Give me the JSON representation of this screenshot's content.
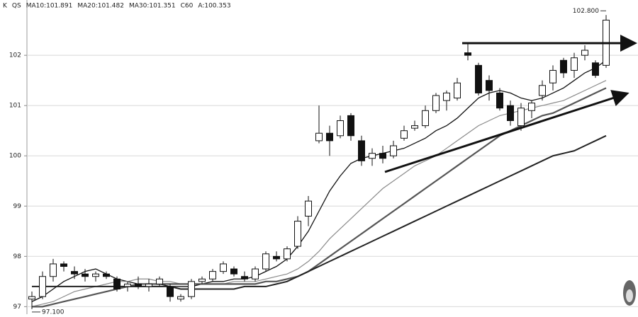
{
  "chart_data": {
    "type": "candlestick",
    "header": [
      "K",
      "QS",
      "MA10:101.891",
      "MA20:101.482",
      "MA30:101.351",
      "C60",
      "A:100.353"
    ],
    "annotations": [
      "102.800",
      "97.100"
    ],
    "ylim": [
      96.85,
      103.1
    ],
    "yticks": [
      97,
      98,
      99,
      100,
      101,
      102
    ],
    "grid": true,
    "up_color": "#ffffff",
    "down_color": "#111111",
    "candles": {
      "open": [
        97.15,
        97.2,
        97.6,
        97.85,
        97.7,
        97.65,
        97.6,
        97.65,
        97.55,
        97.4,
        97.45,
        97.4,
        97.45,
        97.4,
        97.15,
        97.2,
        97.5,
        97.55,
        97.7,
        97.75,
        97.6,
        97.55,
        97.75,
        98.0,
        97.95,
        98.2,
        98.8,
        100.3,
        100.45,
        100.4,
        100.8,
        100.3,
        99.95,
        100.05,
        100.0,
        100.35,
        100.55,
        100.6,
        100.9,
        101.1,
        101.15,
        102.05,
        101.8,
        101.5,
        101.25,
        101.0,
        100.6,
        100.9,
        101.2,
        101.45,
        101.9,
        101.7,
        102.0,
        101.85,
        101.8
      ],
      "high": [
        97.3,
        97.7,
        97.95,
        97.9,
        97.8,
        97.75,
        97.7,
        97.7,
        97.6,
        97.5,
        97.6,
        97.55,
        97.6,
        97.45,
        97.25,
        97.55,
        97.6,
        97.75,
        97.9,
        97.8,
        97.7,
        97.8,
        98.1,
        98.1,
        98.2,
        98.8,
        99.2,
        101.0,
        100.6,
        100.8,
        100.85,
        100.4,
        100.15,
        100.2,
        100.3,
        100.6,
        100.7,
        101.0,
        101.25,
        101.3,
        101.55,
        102.25,
        101.85,
        101.6,
        101.35,
        101.1,
        101.05,
        101.1,
        101.5,
        101.8,
        101.95,
        102.05,
        102.2,
        101.9,
        102.8
      ],
      "low": [
        96.95,
        97.15,
        97.5,
        97.7,
        97.55,
        97.5,
        97.5,
        97.55,
        97.3,
        97.3,
        97.35,
        97.3,
        97.4,
        97.1,
        97.1,
        97.15,
        97.45,
        97.5,
        97.65,
        97.6,
        97.5,
        97.5,
        97.7,
        97.9,
        97.9,
        98.15,
        98.6,
        100.25,
        100.0,
        100.35,
        100.3,
        99.8,
        99.8,
        99.85,
        99.95,
        100.3,
        100.5,
        100.55,
        100.85,
        100.9,
        101.1,
        101.9,
        101.2,
        101.1,
        100.9,
        100.6,
        100.5,
        100.75,
        101.1,
        101.3,
        101.55,
        101.55,
        101.9,
        101.55,
        101.75
      ],
      "close": [
        97.2,
        97.6,
        97.85,
        97.8,
        97.65,
        97.6,
        97.65,
        97.6,
        97.35,
        97.45,
        97.4,
        97.45,
        97.55,
        97.2,
        97.2,
        97.5,
        97.55,
        97.7,
        97.85,
        97.65,
        97.55,
        97.75,
        98.05,
        97.95,
        98.15,
        98.7,
        99.1,
        100.45,
        100.3,
        100.7,
        100.4,
        99.9,
        100.05,
        99.95,
        100.2,
        100.5,
        100.6,
        100.9,
        101.2,
        101.25,
        101.45,
        102.0,
        101.25,
        101.3,
        100.95,
        100.7,
        100.95,
        101.05,
        101.4,
        101.7,
        101.65,
        101.95,
        102.1,
        101.6,
        102.7
      ]
    },
    "series": [
      {
        "color": "#111111",
        "width": 1.3,
        "values": [
          97.1,
          97.2,
          97.35,
          97.5,
          97.6,
          97.7,
          97.75,
          97.65,
          97.55,
          97.5,
          97.45,
          97.45,
          97.45,
          97.4,
          97.4,
          97.4,
          97.45,
          97.5,
          97.5,
          97.55,
          97.55,
          97.6,
          97.7,
          97.8,
          97.95,
          98.2,
          98.5,
          98.9,
          99.3,
          99.6,
          99.85,
          99.95,
          100.0,
          100.05,
          100.1,
          100.15,
          100.25,
          100.35,
          100.5,
          100.6,
          100.75,
          100.95,
          101.15,
          101.25,
          101.3,
          101.25,
          101.15,
          101.1,
          101.15,
          101.25,
          101.35,
          101.5,
          101.65,
          101.75,
          101.9
        ]
      },
      {
        "color": "#8a8a8a",
        "width": 1.2,
        "values": [
          97.0,
          97.05,
          97.1,
          97.2,
          97.3,
          97.35,
          97.4,
          97.45,
          97.5,
          97.5,
          97.55,
          97.55,
          97.5,
          97.5,
          97.45,
          97.45,
          97.45,
          97.45,
          97.45,
          97.5,
          97.5,
          97.5,
          97.55,
          97.6,
          97.65,
          97.75,
          97.9,
          98.1,
          98.35,
          98.55,
          98.75,
          98.95,
          99.15,
          99.35,
          99.5,
          99.65,
          99.8,
          99.9,
          100.0,
          100.15,
          100.3,
          100.45,
          100.6,
          100.7,
          100.8,
          100.85,
          100.9,
          100.95,
          101.0,
          101.05,
          101.1,
          101.2,
          101.3,
          101.4,
          101.5
        ]
      },
      {
        "color": "#555555",
        "width": 2.2,
        "values": [
          97.0,
          97.0,
          97.05,
          97.1,
          97.15,
          97.2,
          97.25,
          97.3,
          97.35,
          97.4,
          97.45,
          97.45,
          97.45,
          97.45,
          97.45,
          97.45,
          97.45,
          97.45,
          97.45,
          97.45,
          97.45,
          97.45,
          97.5,
          97.5,
          97.55,
          97.6,
          97.7,
          97.85,
          98.0,
          98.15,
          98.3,
          98.45,
          98.6,
          98.75,
          98.9,
          99.05,
          99.2,
          99.35,
          99.5,
          99.65,
          99.8,
          99.95,
          100.1,
          100.25,
          100.4,
          100.5,
          100.6,
          100.7,
          100.8,
          100.85,
          100.95,
          101.05,
          101.15,
          101.25,
          101.35
        ]
      },
      {
        "color": "#222222",
        "width": 2,
        "values": [
          97.4,
          97.4,
          97.4,
          97.4,
          97.4,
          97.4,
          97.4,
          97.4,
          97.4,
          97.4,
          97.4,
          97.4,
          97.4,
          97.4,
          97.35,
          97.35,
          97.35,
          97.35,
          97.35,
          97.35,
          97.4,
          97.4,
          97.4,
          97.45,
          97.5,
          97.6,
          97.7,
          97.8,
          97.9,
          98.0,
          98.1,
          98.2,
          98.3,
          98.4,
          98.5,
          98.6,
          98.7,
          98.8,
          98.9,
          99.0,
          99.1,
          99.2,
          99.3,
          99.4,
          99.5,
          99.6,
          99.7,
          99.8,
          99.9,
          100.0,
          100.05,
          100.1,
          100.2,
          100.3,
          100.4
        ]
      }
    ]
  }
}
